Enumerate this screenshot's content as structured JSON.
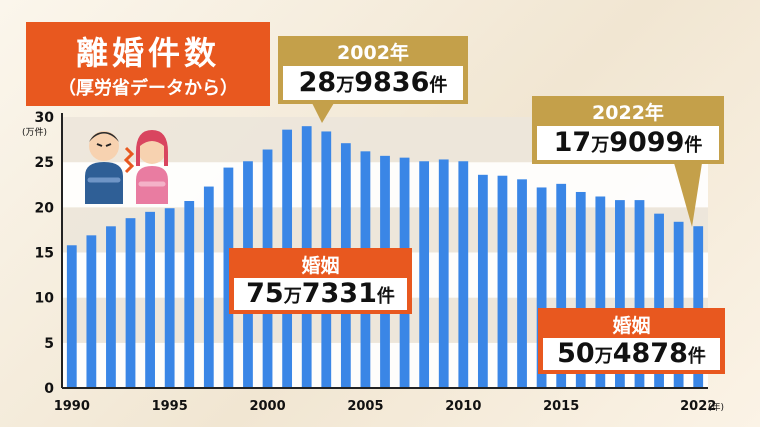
{
  "title": {
    "main": "離婚件数",
    "sub": "（厚労省データから）"
  },
  "callouts": {
    "peak": {
      "label": "2002年",
      "d1": "28",
      "u1": "万",
      "d2": "9836",
      "u2": "件"
    },
    "latest": {
      "label": "2022年",
      "d1": "17",
      "u1": "万",
      "d2": "9099",
      "u2": "件"
    },
    "marriage_peak": {
      "label": "婚姻",
      "d1": "75",
      "u1": "万",
      "d2": "7331",
      "u2": "件"
    },
    "marriage_latest": {
      "label": "婚姻",
      "d1": "50",
      "u1": "万",
      "d2": "4878",
      "u2": "件"
    }
  },
  "colors": {
    "bar": "#3a86e6",
    "orange": "#e8581f",
    "gold": "#c4a04a"
  },
  "icons": [
    "arguing-couple-icon"
  ],
  "chart_data": {
    "type": "bar",
    "title": "離婚件数",
    "subtitle": "（厚労省データから）",
    "y_unit_label": "(万件)",
    "x_unit_label": "(年)",
    "ylim": [
      0,
      30
    ],
    "yticks": [
      0,
      5,
      10,
      15,
      20,
      25,
      30
    ],
    "xtick_labels": [
      "1990",
      "1995",
      "2000",
      "2005",
      "2010",
      "2015",
      "2022"
    ],
    "x": [
      1990,
      1991,
      1992,
      1993,
      1994,
      1995,
      1996,
      1997,
      1998,
      1999,
      2000,
      2001,
      2002,
      2003,
      2004,
      2005,
      2006,
      2007,
      2008,
      2009,
      2010,
      2011,
      2012,
      2013,
      2014,
      2015,
      2016,
      2017,
      2018,
      2019,
      2020,
      2021,
      2022
    ],
    "values": [
      15.8,
      16.9,
      17.9,
      18.8,
      19.5,
      19.9,
      20.7,
      22.3,
      24.4,
      25.1,
      26.4,
      28.6,
      28.9836,
      28.4,
      27.1,
      26.2,
      25.7,
      25.5,
      25.1,
      25.3,
      25.1,
      23.6,
      23.5,
      23.1,
      22.2,
      22.6,
      21.7,
      21.2,
      20.8,
      20.8,
      19.3,
      18.4,
      17.9099
    ],
    "grid": "horizontal bands",
    "legend": "none"
  }
}
